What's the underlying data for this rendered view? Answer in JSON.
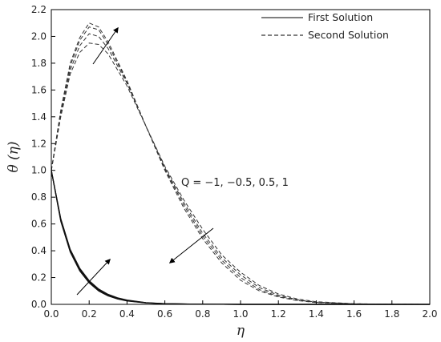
{
  "chart_data": {
    "type": "line",
    "title": "",
    "xlabel": "η",
    "ylabel": "θ (η)",
    "xlim": [
      0.0,
      2.0
    ],
    "ylim": [
      0.0,
      2.2
    ],
    "x_ticks": [
      "0.0",
      "0.2",
      "0.4",
      "0.6",
      "0.8",
      "1.0",
      "1.2",
      "1.4",
      "1.6",
      "1.8",
      "2.0"
    ],
    "y_ticks": [
      "0.0",
      "0.2",
      "0.4",
      "0.6",
      "0.8",
      "1.0",
      "1.2",
      "1.4",
      "1.6",
      "1.8",
      "2.0",
      "2.2"
    ],
    "grid": false,
    "legend_position": "top-right",
    "legend": [
      {
        "label": "First Solution",
        "style": "solid"
      },
      {
        "label": "Second Solution",
        "style": "dashed"
      }
    ],
    "annotation": "Q = −1, −0.5, 0.5, 1",
    "series": [
      {
        "solution": "first",
        "Q": "-1",
        "style": "solid",
        "x": [
          0,
          0.05,
          0.1,
          0.15,
          0.2,
          0.25,
          0.3,
          0.35,
          0.4,
          0.5,
          0.6,
          0.8,
          1.0,
          1.2,
          1.4,
          1.6,
          1.8,
          2.0
        ],
        "y": [
          1.0,
          0.62,
          0.39,
          0.25,
          0.16,
          0.1,
          0.063,
          0.04,
          0.025,
          0.01,
          0.004,
          0.001,
          0.0,
          0.0,
          0.0,
          0.0,
          0.0,
          0.0
        ]
      },
      {
        "solution": "first",
        "Q": "-0.5",
        "style": "solid",
        "x": [
          0,
          0.05,
          0.1,
          0.15,
          0.2,
          0.25,
          0.3,
          0.35,
          0.4,
          0.5,
          0.6,
          0.8,
          1.0,
          1.2,
          1.4,
          1.6,
          1.8,
          2.0
        ],
        "y": [
          1.0,
          0.625,
          0.395,
          0.255,
          0.165,
          0.105,
          0.066,
          0.042,
          0.027,
          0.011,
          0.0045,
          0.001,
          0.0,
          0.0,
          0.0,
          0.0,
          0.0,
          0.0
        ]
      },
      {
        "solution": "first",
        "Q": "0.5",
        "style": "solid",
        "x": [
          0,
          0.05,
          0.1,
          0.15,
          0.2,
          0.25,
          0.3,
          0.35,
          0.4,
          0.5,
          0.6,
          0.8,
          1.0,
          1.2,
          1.4,
          1.6,
          1.8,
          2.0
        ],
        "y": [
          1.0,
          0.635,
          0.405,
          0.265,
          0.172,
          0.111,
          0.071,
          0.046,
          0.03,
          0.012,
          0.005,
          0.001,
          0.0,
          0.0,
          0.0,
          0.0,
          0.0,
          0.0
        ]
      },
      {
        "solution": "first",
        "Q": "1",
        "style": "solid",
        "x": [
          0,
          0.05,
          0.1,
          0.15,
          0.2,
          0.25,
          0.3,
          0.35,
          0.4,
          0.5,
          0.6,
          0.8,
          1.0,
          1.2,
          1.4,
          1.6,
          1.8,
          2.0
        ],
        "y": [
          1.0,
          0.64,
          0.41,
          0.27,
          0.177,
          0.115,
          0.075,
          0.049,
          0.032,
          0.013,
          0.0055,
          0.001,
          0.0,
          0.0,
          0.0,
          0.0,
          0.0,
          0.0
        ]
      },
      {
        "solution": "second",
        "Q": "-1",
        "style": "dashed",
        "x": [
          0,
          0.05,
          0.1,
          0.15,
          0.2,
          0.25,
          0.3,
          0.4,
          0.5,
          0.6,
          0.7,
          0.8,
          0.9,
          1.0,
          1.1,
          1.2,
          1.3,
          1.4,
          1.6,
          1.8,
          2.0
        ],
        "y": [
          1.0,
          1.45,
          1.8,
          1.99,
          2.1,
          2.07,
          1.96,
          1.67,
          1.33,
          1.0,
          0.72,
          0.49,
          0.31,
          0.18,
          0.1,
          0.055,
          0.028,
          0.013,
          0.003,
          0.001,
          0.0
        ]
      },
      {
        "solution": "second",
        "Q": "-0.5",
        "style": "dashed",
        "x": [
          0,
          0.05,
          0.1,
          0.15,
          0.2,
          0.25,
          0.3,
          0.4,
          0.5,
          0.6,
          0.7,
          0.8,
          0.9,
          1.0,
          1.1,
          1.2,
          1.3,
          1.4,
          1.6,
          1.8,
          2.0
        ],
        "y": [
          1.0,
          1.44,
          1.78,
          1.97,
          2.07,
          2.05,
          1.94,
          1.66,
          1.33,
          1.01,
          0.74,
          0.51,
          0.33,
          0.2,
          0.11,
          0.06,
          0.031,
          0.015,
          0.003,
          0.001,
          0.0
        ]
      },
      {
        "solution": "second",
        "Q": "0.5",
        "style": "dashed",
        "x": [
          0,
          0.05,
          0.1,
          0.15,
          0.2,
          0.25,
          0.3,
          0.4,
          0.5,
          0.6,
          0.7,
          0.8,
          0.9,
          1.0,
          1.1,
          1.2,
          1.3,
          1.4,
          1.6,
          1.8,
          2.0
        ],
        "y": [
          1.0,
          1.42,
          1.75,
          1.93,
          2.02,
          2.0,
          1.91,
          1.65,
          1.33,
          1.02,
          0.76,
          0.53,
          0.35,
          0.22,
          0.125,
          0.068,
          0.035,
          0.017,
          0.004,
          0.001,
          0.0
        ]
      },
      {
        "solution": "second",
        "Q": "1",
        "style": "dashed",
        "x": [
          0,
          0.05,
          0.1,
          0.15,
          0.2,
          0.25,
          0.3,
          0.4,
          0.5,
          0.6,
          0.7,
          0.8,
          0.9,
          1.0,
          1.1,
          1.2,
          1.3,
          1.4,
          1.6,
          1.8,
          2.0
        ],
        "y": [
          1.0,
          1.4,
          1.72,
          1.88,
          1.95,
          1.94,
          1.87,
          1.63,
          1.33,
          1.03,
          0.78,
          0.56,
          0.37,
          0.24,
          0.14,
          0.078,
          0.04,
          0.02,
          0.005,
          0.001,
          0.0
        ]
      }
    ]
  }
}
